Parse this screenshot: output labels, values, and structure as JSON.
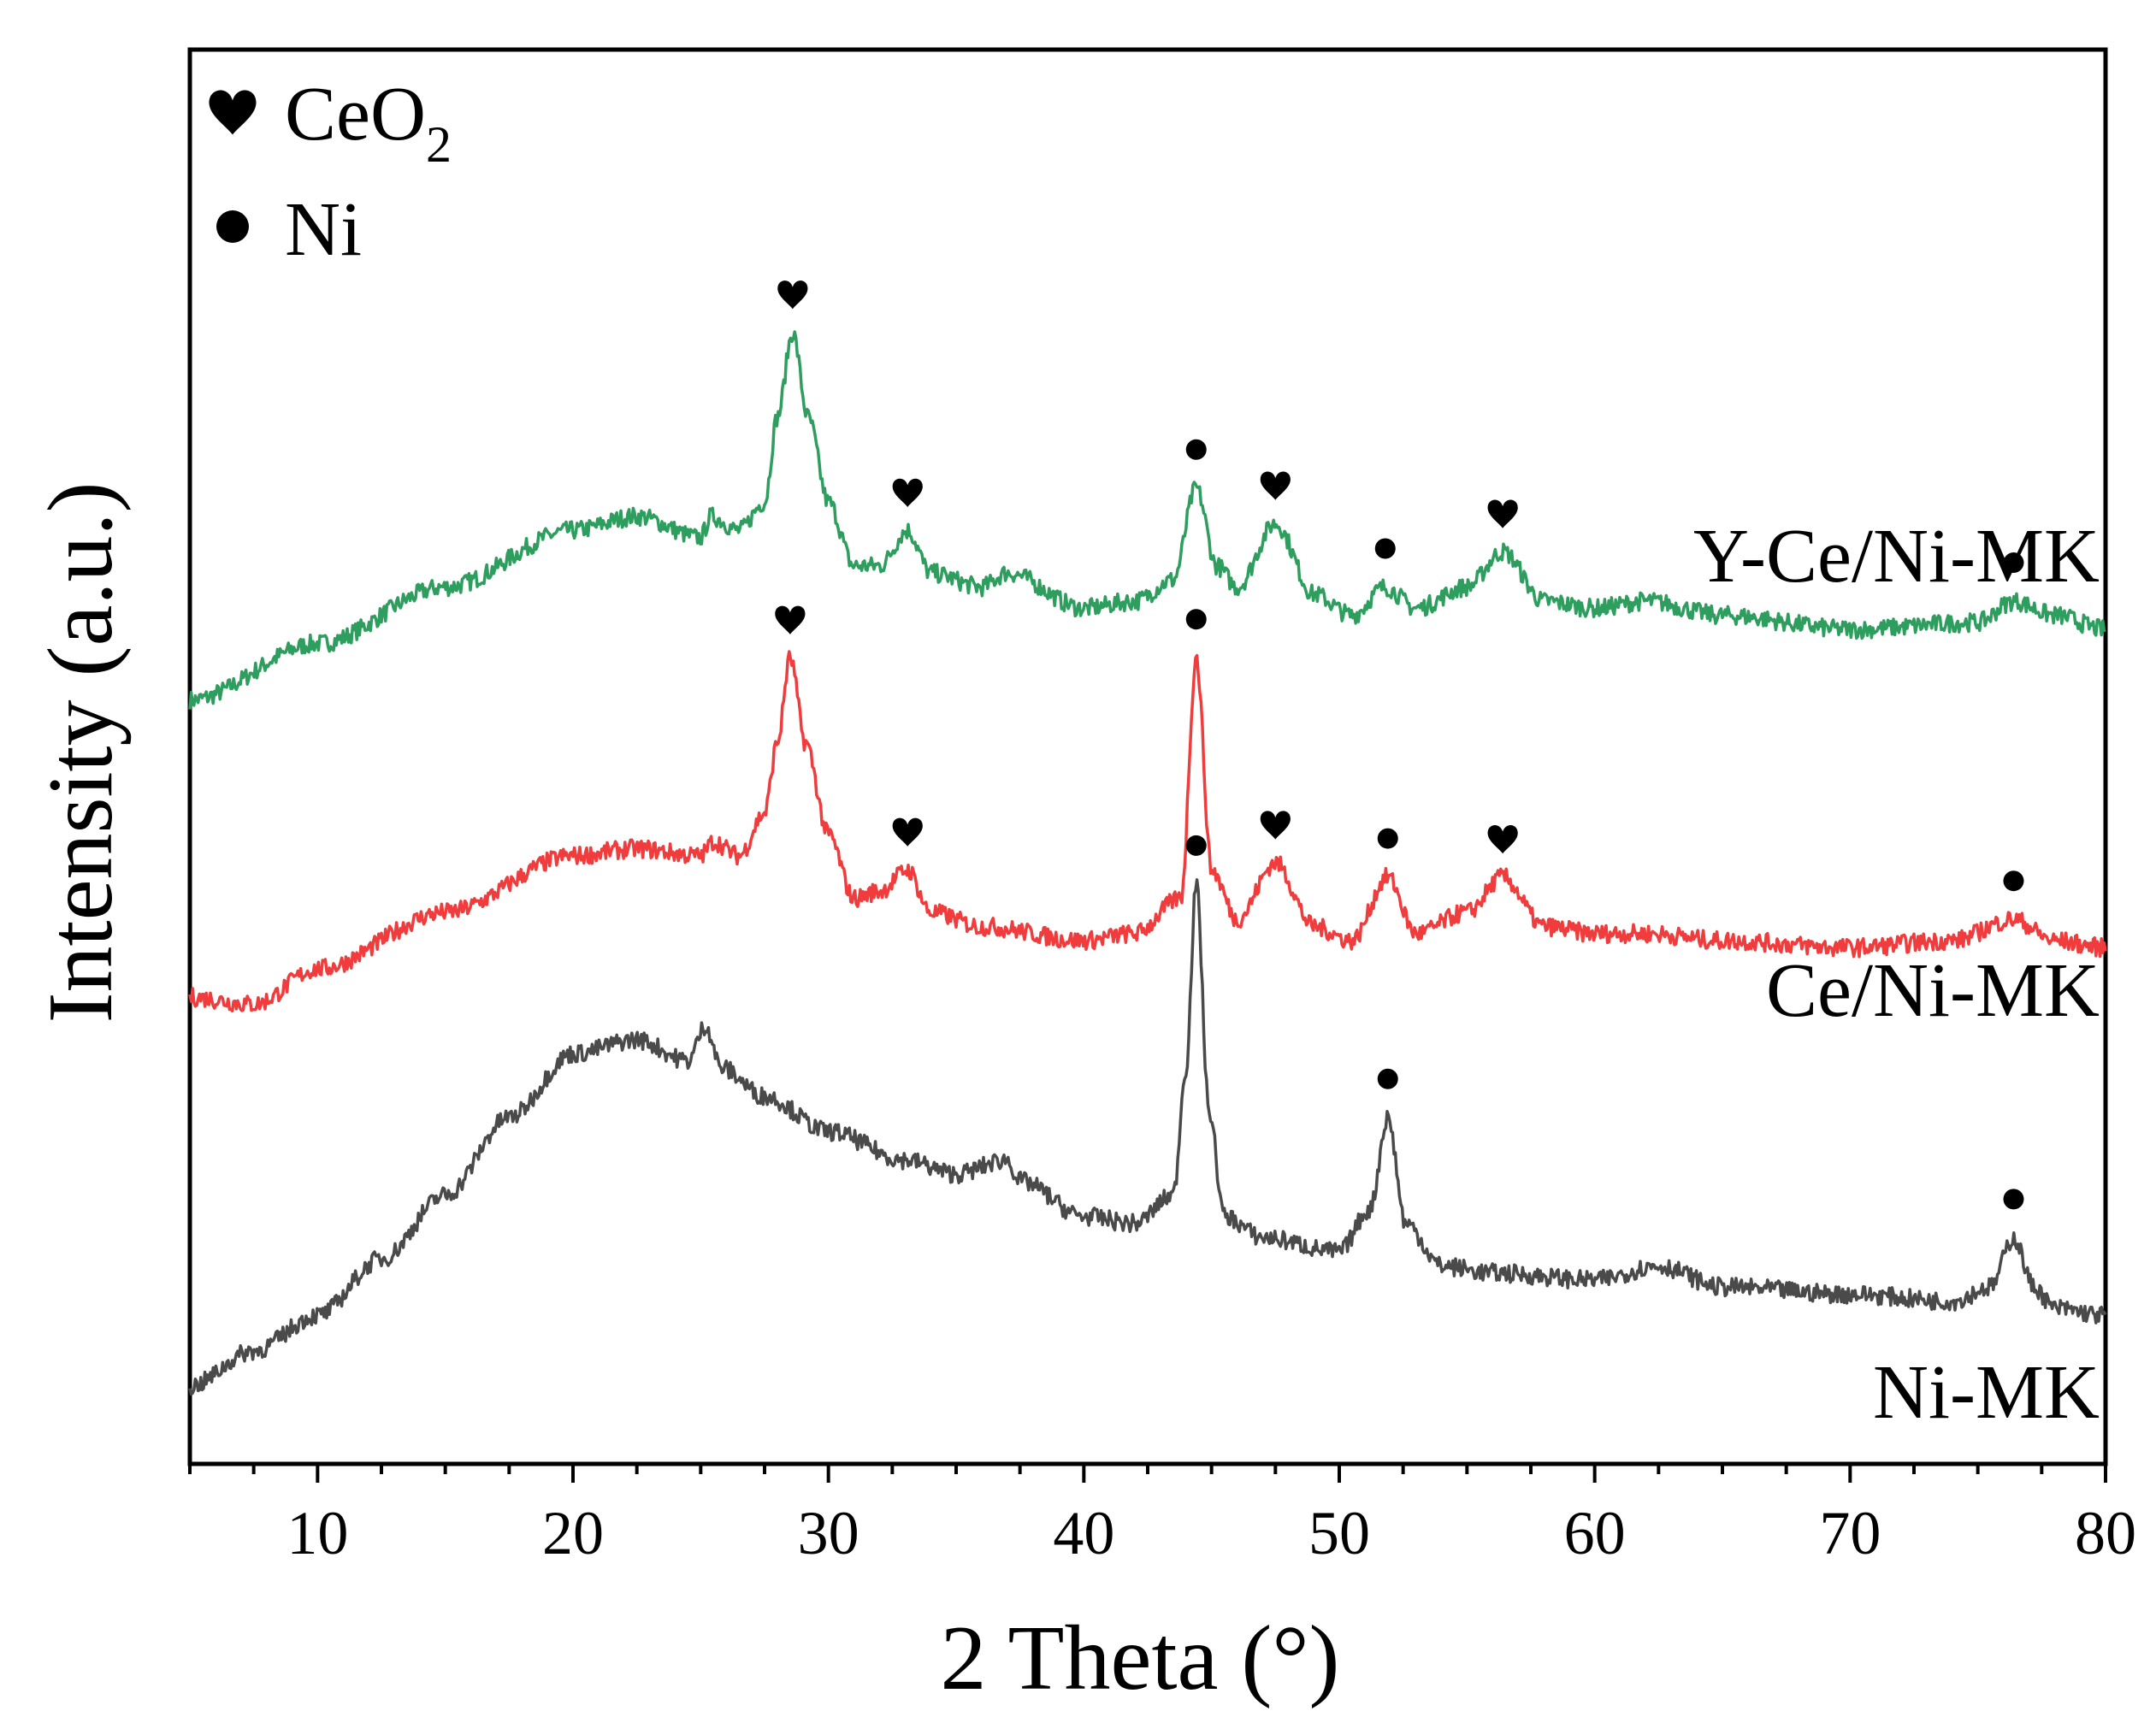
{
  "chart_data": {
    "type": "line",
    "title": "",
    "xlabel": "2 Theta (°)",
    "ylabel": "Intensity (a.u.)",
    "xlim": [
      5,
      80
    ],
    "ylim": [
      0,
      100
    ],
    "xticks": [
      10,
      20,
      30,
      40,
      50,
      60,
      70,
      80
    ],
    "y_tick_labels": false,
    "grid": false,
    "legend": {
      "placement": "top-left",
      "entries": [
        {
          "marker": "heart",
          "label": "CeO",
          "subscript": "2"
        },
        {
          "marker": "dot",
          "label": "Ni"
        }
      ]
    },
    "series": [
      {
        "name": "Y-Ce/Ni-MK",
        "color": "#2e9e5e",
        "x": [
          5,
          10,
          15,
          20,
          22.5,
          25,
          25.4,
          26.5,
          27.5,
          28.0,
          28.6,
          29.2,
          30,
          31,
          32,
          33.1,
          34,
          36,
          37,
          40,
          42,
          43.5,
          44.4,
          45.2,
          46,
          47.5,
          49,
          50.5,
          51.8,
          53,
          55,
          56.4,
          58,
          60,
          62,
          65,
          70,
          75,
          76.4,
          78,
          80
        ],
        "values": [
          54,
          58,
          62,
          66,
          67,
          65.5,
          67,
          66,
          68,
          74,
          80,
          74,
          68,
          63.5,
          63.5,
          66,
          63,
          62,
          63,
          60.5,
          61,
          62.5,
          69,
          63.5,
          62,
          66.5,
          61.5,
          60,
          62,
          60.5,
          62,
          64.5,
          61,
          60.5,
          61,
          60,
          59,
          59.5,
          61,
          60,
          59
        ],
        "peaks": [
          {
            "x": 28.6,
            "phase": "CeO2"
          },
          {
            "x": 33.1,
            "phase": "CeO2"
          },
          {
            "x": 44.4,
            "phase": "Ni"
          },
          {
            "x": 47.5,
            "phase": "CeO2"
          },
          {
            "x": 51.8,
            "phase": "Ni"
          },
          {
            "x": 56.4,
            "phase": "CeO2"
          },
          {
            "x": 76.4,
            "phase": "Ni"
          }
        ]
      },
      {
        "name": "Ce/Ni-MK",
        "color": "#f03c3c",
        "x": [
          5,
          7.5,
          10,
          15,
          20,
          22.5,
          25,
          25.5,
          26.5,
          27.5,
          28.0,
          28.5,
          29.1,
          30,
          31,
          32,
          33.1,
          34,
          36,
          40,
          42,
          43.8,
          44.4,
          45.0,
          46,
          47.5,
          49,
          50.5,
          51.9,
          53,
          55,
          56.4,
          58,
          60,
          62,
          65,
          70,
          74,
          76.4,
          78,
          80
        ],
        "values": [
          33,
          32.5,
          35,
          39,
          43,
          43.5,
          43,
          44,
          43,
          46,
          51,
          57,
          51,
          44.5,
          40,
          40.5,
          42,
          39,
          38,
          37,
          37.5,
          40,
          57,
          42,
          38.5,
          42.5,
          38,
          37,
          41.5,
          37.5,
          39,
          41.5,
          38,
          37.5,
          37.5,
          37,
          36.5,
          37,
          38.5,
          37,
          36.5
        ],
        "peaks": [
          {
            "x": 28.5,
            "phase": "CeO2"
          },
          {
            "x": 33.1,
            "phase": "CeO2"
          },
          {
            "x": 44.4,
            "phase": "Ni"
          },
          {
            "x": 47.5,
            "phase": "CeO2"
          },
          {
            "x": 51.9,
            "phase": "Ni"
          },
          {
            "x": 56.4,
            "phase": "CeO2"
          },
          {
            "x": 76.4,
            "phase": "Ni"
          }
        ]
      },
      {
        "name": "Ni-MK",
        "color": "#4a4a4a",
        "x": [
          5,
          7.5,
          10,
          12.5,
          15,
          17.5,
          20,
          22.5,
          24.5,
          25.2,
          25.8,
          27.5,
          30,
          33,
          35,
          37,
          37.5,
          40,
          42,
          43.5,
          44.0,
          44.4,
          44.9,
          45.5,
          47,
          50,
          51.2,
          51.9,
          52.6,
          54,
          56,
          60,
          62.5,
          65,
          70,
          74,
          75.5,
          76.4,
          77.2,
          78,
          80
        ],
        "values": [
          5.5,
          8,
          10.5,
          14.5,
          19,
          24.5,
          29,
          30,
          28.5,
          31,
          28,
          26,
          23.5,
          21.5,
          20.5,
          21.5,
          20,
          17.5,
          17,
          19,
          28,
          41,
          25,
          17.5,
          16,
          15,
          18,
          24.5,
          17,
          14,
          13.5,
          13,
          14,
          12.5,
          12,
          11.5,
          12.5,
          16,
          12.5,
          11,
          10.5
        ],
        "peaks": [
          {
            "x": 44.4,
            "phase": "Ni"
          },
          {
            "x": 51.9,
            "phase": "Ni"
          },
          {
            "x": 76.4,
            "phase": "Ni"
          }
        ]
      }
    ]
  }
}
